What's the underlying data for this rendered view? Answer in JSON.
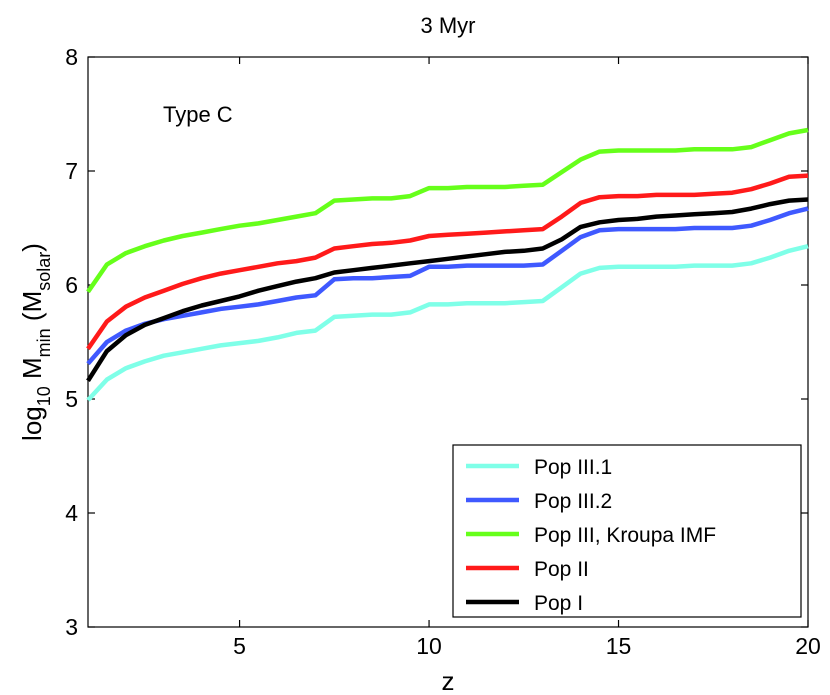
{
  "chart_data": {
    "type": "line",
    "title": "3 Myr",
    "xlabel": "z",
    "ylabel": {
      "base": "log",
      "base_sub": "10",
      "main": " M",
      "main_sub": "min",
      "paren_open": " (M",
      "paren_sub": "solar",
      "paren_close": ")"
    },
    "annotation": "Type C",
    "xlim": [
      1,
      20
    ],
    "ylim": [
      3,
      8
    ],
    "xticks": [
      5,
      10,
      15,
      20
    ],
    "yticks": [
      3,
      4,
      5,
      6,
      7,
      8
    ],
    "grid": false,
    "legend_position": "bottom-right",
    "series": [
      {
        "name": "Pop III.1",
        "color": "#7fffe8",
        "x": [
          1,
          1.5,
          2,
          2.5,
          3,
          3.5,
          4,
          4.5,
          5,
          5.5,
          6,
          6.5,
          7,
          7.5,
          8,
          8.5,
          9,
          9.5,
          10,
          10.5,
          11,
          11.5,
          12,
          12.5,
          13,
          13.5,
          14,
          14.5,
          15,
          15.5,
          16,
          16.5,
          17,
          17.5,
          18,
          18.5,
          19,
          19.5,
          20
        ],
        "values": [
          4.99,
          5.17,
          5.27,
          5.33,
          5.38,
          5.41,
          5.44,
          5.47,
          5.49,
          5.51,
          5.54,
          5.58,
          5.6,
          5.72,
          5.73,
          5.74,
          5.74,
          5.76,
          5.83,
          5.83,
          5.84,
          5.84,
          5.84,
          5.85,
          5.86,
          5.98,
          6.1,
          6.15,
          6.16,
          6.16,
          6.16,
          6.16,
          6.17,
          6.17,
          6.17,
          6.19,
          6.24,
          6.3,
          6.34
        ]
      },
      {
        "name": "Pop III.2",
        "color": "#3f59ff",
        "x": [
          1,
          1.5,
          2,
          2.5,
          3,
          3.5,
          4,
          4.5,
          5,
          5.5,
          6,
          6.5,
          7,
          7.5,
          8,
          8.5,
          9,
          9.5,
          10,
          10.5,
          11,
          11.5,
          12,
          12.5,
          13,
          13.5,
          14,
          14.5,
          15,
          15.5,
          16,
          16.5,
          17,
          17.5,
          18,
          18.5,
          19,
          19.5,
          20
        ],
        "values": [
          5.31,
          5.5,
          5.6,
          5.66,
          5.7,
          5.73,
          5.76,
          5.79,
          5.81,
          5.83,
          5.86,
          5.89,
          5.91,
          6.05,
          6.06,
          6.06,
          6.07,
          6.08,
          6.16,
          6.16,
          6.17,
          6.17,
          6.17,
          6.17,
          6.18,
          6.3,
          6.42,
          6.48,
          6.49,
          6.49,
          6.49,
          6.49,
          6.5,
          6.5,
          6.5,
          6.52,
          6.57,
          6.63,
          6.67
        ]
      },
      {
        "name": "Pop III, Kroupa IMF",
        "color": "#66ff1a",
        "x": [
          1,
          1.5,
          2,
          2.5,
          3,
          3.5,
          4,
          4.5,
          5,
          5.5,
          6,
          6.5,
          7,
          7.5,
          8,
          8.5,
          9,
          9.5,
          10,
          10.5,
          11,
          11.5,
          12,
          12.5,
          13,
          13.5,
          14,
          14.5,
          15,
          15.5,
          16,
          16.5,
          17,
          17.5,
          18,
          18.5,
          19,
          19.5,
          20
        ],
        "values": [
          5.94,
          6.18,
          6.28,
          6.34,
          6.39,
          6.43,
          6.46,
          6.49,
          6.52,
          6.54,
          6.57,
          6.6,
          6.63,
          6.74,
          6.75,
          6.76,
          6.76,
          6.78,
          6.85,
          6.85,
          6.86,
          6.86,
          6.86,
          6.87,
          6.88,
          6.99,
          7.1,
          7.17,
          7.18,
          7.18,
          7.18,
          7.18,
          7.19,
          7.19,
          7.19,
          7.21,
          7.27,
          7.33,
          7.36
        ]
      },
      {
        "name": "Pop II",
        "color": "#ff1a1a",
        "x": [
          1,
          1.5,
          2,
          2.5,
          3,
          3.5,
          4,
          4.5,
          5,
          5.5,
          6,
          6.5,
          7,
          7.5,
          8,
          8.5,
          9,
          9.5,
          10,
          10.5,
          11,
          11.5,
          12,
          12.5,
          13,
          13.5,
          14,
          14.5,
          15,
          15.5,
          16,
          16.5,
          17,
          17.5,
          18,
          18.5,
          19,
          19.5,
          20
        ],
        "values": [
          5.44,
          5.68,
          5.81,
          5.89,
          5.95,
          6.01,
          6.06,
          6.1,
          6.13,
          6.16,
          6.19,
          6.21,
          6.24,
          6.32,
          6.34,
          6.36,
          6.37,
          6.39,
          6.43,
          6.44,
          6.45,
          6.46,
          6.47,
          6.48,
          6.49,
          6.6,
          6.72,
          6.77,
          6.78,
          6.78,
          6.79,
          6.79,
          6.79,
          6.8,
          6.81,
          6.84,
          6.89,
          6.95,
          6.96
        ]
      },
      {
        "name": "Pop I",
        "color": "#000000",
        "x": [
          1,
          1.5,
          2,
          2.5,
          3,
          3.5,
          4,
          4.5,
          5,
          5.5,
          6,
          6.5,
          7,
          7.5,
          8,
          8.5,
          9,
          9.5,
          10,
          10.5,
          11,
          11.5,
          12,
          12.5,
          13,
          13.5,
          14,
          14.5,
          15,
          15.5,
          16,
          16.5,
          17,
          17.5,
          18,
          18.5,
          19,
          19.5,
          20
        ],
        "values": [
          5.16,
          5.42,
          5.56,
          5.65,
          5.71,
          5.77,
          5.82,
          5.86,
          5.9,
          5.95,
          5.99,
          6.03,
          6.06,
          6.11,
          6.13,
          6.15,
          6.17,
          6.19,
          6.21,
          6.23,
          6.25,
          6.27,
          6.29,
          6.3,
          6.32,
          6.4,
          6.51,
          6.55,
          6.57,
          6.58,
          6.6,
          6.61,
          6.62,
          6.63,
          6.64,
          6.67,
          6.71,
          6.74,
          6.75
        ]
      }
    ]
  }
}
